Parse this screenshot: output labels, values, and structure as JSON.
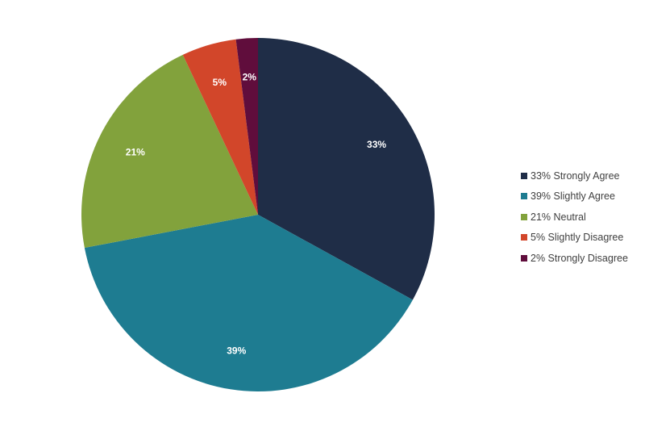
{
  "chart_data": {
    "type": "pie",
    "title": "",
    "slices": [
      {
        "label": "Strongly Agree",
        "value": 33,
        "display": "33%",
        "legend": "33% Strongly Agree",
        "color": "#1f2d47"
      },
      {
        "label": "Slightly Agree",
        "value": 39,
        "display": "39%",
        "legend": "39% Slightly Agree",
        "color": "#1e7c91"
      },
      {
        "label": "Neutral",
        "value": 21,
        "display": "21%",
        "legend": "21% Neutral",
        "color": "#82a23c"
      },
      {
        "label": "Slightly Disagree",
        "value": 5,
        "display": "5%",
        "legend": "5% Slightly Disagree",
        "color": "#d2462a"
      },
      {
        "label": "Strongly Disagree",
        "value": 2,
        "display": "2%",
        "legend": "2% Strongly Disagree",
        "color": "#600d3c"
      }
    ],
    "start_angle": "12 o'clock",
    "direction": "clockwise",
    "legend_position": "right",
    "data_labels": "inside, white, bold"
  }
}
